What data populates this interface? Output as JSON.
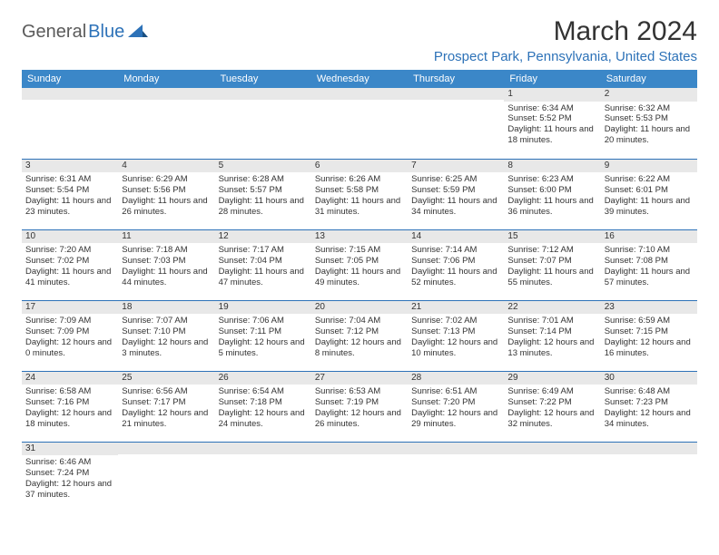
{
  "logo": {
    "part1": "General",
    "part2": "Blue"
  },
  "title": "March 2024",
  "location": "Prospect Park, Pennsylvania, United States",
  "colors": {
    "header_bg": "#3b87c8",
    "accent": "#2d72b8",
    "daynum_bg": "#e8e8e8",
    "text": "#333333",
    "border": "#2d72b8"
  },
  "day_headers": [
    "Sunday",
    "Monday",
    "Tuesday",
    "Wednesday",
    "Thursday",
    "Friday",
    "Saturday"
  ],
  "weeks": [
    [
      {
        "num": "",
        "sunrise": "",
        "sunset": "",
        "daylight": ""
      },
      {
        "num": "",
        "sunrise": "",
        "sunset": "",
        "daylight": ""
      },
      {
        "num": "",
        "sunrise": "",
        "sunset": "",
        "daylight": ""
      },
      {
        "num": "",
        "sunrise": "",
        "sunset": "",
        "daylight": ""
      },
      {
        "num": "",
        "sunrise": "",
        "sunset": "",
        "daylight": ""
      },
      {
        "num": "1",
        "sunrise": "Sunrise: 6:34 AM",
        "sunset": "Sunset: 5:52 PM",
        "daylight": "Daylight: 11 hours and 18 minutes."
      },
      {
        "num": "2",
        "sunrise": "Sunrise: 6:32 AM",
        "sunset": "Sunset: 5:53 PM",
        "daylight": "Daylight: 11 hours and 20 minutes."
      }
    ],
    [
      {
        "num": "3",
        "sunrise": "Sunrise: 6:31 AM",
        "sunset": "Sunset: 5:54 PM",
        "daylight": "Daylight: 11 hours and 23 minutes."
      },
      {
        "num": "4",
        "sunrise": "Sunrise: 6:29 AM",
        "sunset": "Sunset: 5:56 PM",
        "daylight": "Daylight: 11 hours and 26 minutes."
      },
      {
        "num": "5",
        "sunrise": "Sunrise: 6:28 AM",
        "sunset": "Sunset: 5:57 PM",
        "daylight": "Daylight: 11 hours and 28 minutes."
      },
      {
        "num": "6",
        "sunrise": "Sunrise: 6:26 AM",
        "sunset": "Sunset: 5:58 PM",
        "daylight": "Daylight: 11 hours and 31 minutes."
      },
      {
        "num": "7",
        "sunrise": "Sunrise: 6:25 AM",
        "sunset": "Sunset: 5:59 PM",
        "daylight": "Daylight: 11 hours and 34 minutes."
      },
      {
        "num": "8",
        "sunrise": "Sunrise: 6:23 AM",
        "sunset": "Sunset: 6:00 PM",
        "daylight": "Daylight: 11 hours and 36 minutes."
      },
      {
        "num": "9",
        "sunrise": "Sunrise: 6:22 AM",
        "sunset": "Sunset: 6:01 PM",
        "daylight": "Daylight: 11 hours and 39 minutes."
      }
    ],
    [
      {
        "num": "10",
        "sunrise": "Sunrise: 7:20 AM",
        "sunset": "Sunset: 7:02 PM",
        "daylight": "Daylight: 11 hours and 41 minutes."
      },
      {
        "num": "11",
        "sunrise": "Sunrise: 7:18 AM",
        "sunset": "Sunset: 7:03 PM",
        "daylight": "Daylight: 11 hours and 44 minutes."
      },
      {
        "num": "12",
        "sunrise": "Sunrise: 7:17 AM",
        "sunset": "Sunset: 7:04 PM",
        "daylight": "Daylight: 11 hours and 47 minutes."
      },
      {
        "num": "13",
        "sunrise": "Sunrise: 7:15 AM",
        "sunset": "Sunset: 7:05 PM",
        "daylight": "Daylight: 11 hours and 49 minutes."
      },
      {
        "num": "14",
        "sunrise": "Sunrise: 7:14 AM",
        "sunset": "Sunset: 7:06 PM",
        "daylight": "Daylight: 11 hours and 52 minutes."
      },
      {
        "num": "15",
        "sunrise": "Sunrise: 7:12 AM",
        "sunset": "Sunset: 7:07 PM",
        "daylight": "Daylight: 11 hours and 55 minutes."
      },
      {
        "num": "16",
        "sunrise": "Sunrise: 7:10 AM",
        "sunset": "Sunset: 7:08 PM",
        "daylight": "Daylight: 11 hours and 57 minutes."
      }
    ],
    [
      {
        "num": "17",
        "sunrise": "Sunrise: 7:09 AM",
        "sunset": "Sunset: 7:09 PM",
        "daylight": "Daylight: 12 hours and 0 minutes."
      },
      {
        "num": "18",
        "sunrise": "Sunrise: 7:07 AM",
        "sunset": "Sunset: 7:10 PM",
        "daylight": "Daylight: 12 hours and 3 minutes."
      },
      {
        "num": "19",
        "sunrise": "Sunrise: 7:06 AM",
        "sunset": "Sunset: 7:11 PM",
        "daylight": "Daylight: 12 hours and 5 minutes."
      },
      {
        "num": "20",
        "sunrise": "Sunrise: 7:04 AM",
        "sunset": "Sunset: 7:12 PM",
        "daylight": "Daylight: 12 hours and 8 minutes."
      },
      {
        "num": "21",
        "sunrise": "Sunrise: 7:02 AM",
        "sunset": "Sunset: 7:13 PM",
        "daylight": "Daylight: 12 hours and 10 minutes."
      },
      {
        "num": "22",
        "sunrise": "Sunrise: 7:01 AM",
        "sunset": "Sunset: 7:14 PM",
        "daylight": "Daylight: 12 hours and 13 minutes."
      },
      {
        "num": "23",
        "sunrise": "Sunrise: 6:59 AM",
        "sunset": "Sunset: 7:15 PM",
        "daylight": "Daylight: 12 hours and 16 minutes."
      }
    ],
    [
      {
        "num": "24",
        "sunrise": "Sunrise: 6:58 AM",
        "sunset": "Sunset: 7:16 PM",
        "daylight": "Daylight: 12 hours and 18 minutes."
      },
      {
        "num": "25",
        "sunrise": "Sunrise: 6:56 AM",
        "sunset": "Sunset: 7:17 PM",
        "daylight": "Daylight: 12 hours and 21 minutes."
      },
      {
        "num": "26",
        "sunrise": "Sunrise: 6:54 AM",
        "sunset": "Sunset: 7:18 PM",
        "daylight": "Daylight: 12 hours and 24 minutes."
      },
      {
        "num": "27",
        "sunrise": "Sunrise: 6:53 AM",
        "sunset": "Sunset: 7:19 PM",
        "daylight": "Daylight: 12 hours and 26 minutes."
      },
      {
        "num": "28",
        "sunrise": "Sunrise: 6:51 AM",
        "sunset": "Sunset: 7:20 PM",
        "daylight": "Daylight: 12 hours and 29 minutes."
      },
      {
        "num": "29",
        "sunrise": "Sunrise: 6:49 AM",
        "sunset": "Sunset: 7:22 PM",
        "daylight": "Daylight: 12 hours and 32 minutes."
      },
      {
        "num": "30",
        "sunrise": "Sunrise: 6:48 AM",
        "sunset": "Sunset: 7:23 PM",
        "daylight": "Daylight: 12 hours and 34 minutes."
      }
    ],
    [
      {
        "num": "31",
        "sunrise": "Sunrise: 6:46 AM",
        "sunset": "Sunset: 7:24 PM",
        "daylight": "Daylight: 12 hours and 37 minutes."
      },
      {
        "num": "",
        "sunrise": "",
        "sunset": "",
        "daylight": ""
      },
      {
        "num": "",
        "sunrise": "",
        "sunset": "",
        "daylight": ""
      },
      {
        "num": "",
        "sunrise": "",
        "sunset": "",
        "daylight": ""
      },
      {
        "num": "",
        "sunrise": "",
        "sunset": "",
        "daylight": ""
      },
      {
        "num": "",
        "sunrise": "",
        "sunset": "",
        "daylight": ""
      },
      {
        "num": "",
        "sunrise": "",
        "sunset": "",
        "daylight": ""
      }
    ]
  ]
}
